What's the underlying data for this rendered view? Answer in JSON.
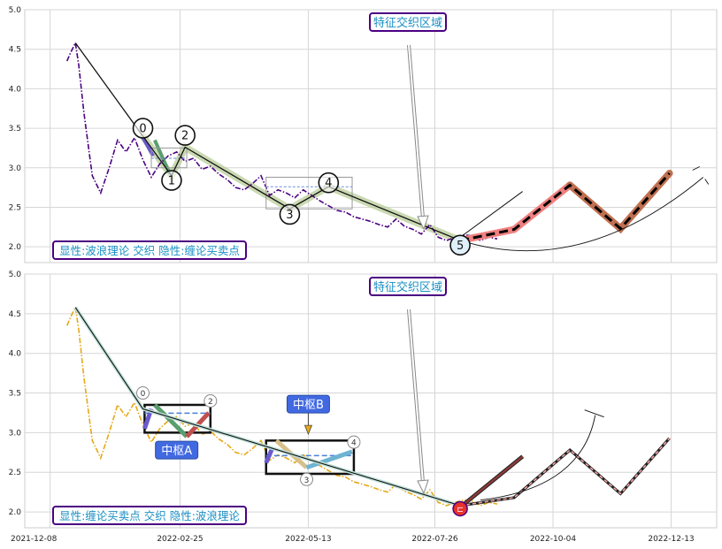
{
  "chart_data": [
    {
      "type": "line",
      "panel": "top",
      "ylim": [
        1.8,
        5.0
      ],
      "yticks": [
        "2.0",
        "2.5",
        "3.0",
        "3.5",
        "4.0",
        "4.5",
        "5.0"
      ],
      "grid": true,
      "price_series": {
        "color": "#4b0082",
        "style": "dashdot",
        "x": [
          -5,
          -3,
          0,
          2,
          5,
          10,
          15,
          20,
          25,
          30,
          35,
          40,
          45,
          50,
          55,
          60,
          65,
          70,
          75,
          80,
          85,
          90,
          95,
          100,
          105,
          110,
          115,
          120,
          125,
          130,
          135,
          140,
          145,
          150,
          155,
          160,
          165,
          170,
          175,
          180,
          185,
          190,
          195,
          200,
          205,
          210,
          215,
          220,
          225,
          230,
          235,
          240,
          245,
          250
        ],
        "y": [
          4.35,
          4.45,
          4.58,
          4.3,
          3.7,
          2.9,
          2.68,
          3.0,
          3.35,
          3.2,
          3.38,
          3.1,
          2.88,
          3.05,
          3.15,
          3.2,
          3.08,
          3.12,
          2.98,
          3.02,
          2.92,
          2.85,
          2.75,
          2.72,
          2.8,
          2.9,
          2.65,
          2.72,
          2.68,
          2.62,
          2.72,
          2.65,
          2.58,
          2.52,
          2.46,
          2.44,
          2.38,
          2.35,
          2.32,
          2.28,
          2.25,
          2.35,
          2.26,
          2.22,
          2.16,
          2.28,
          2.12,
          2.08,
          2.12,
          2.15,
          2.14,
          2.08,
          2.12,
          2.1
        ]
      },
      "wave_line": {
        "x": [
          0,
          40,
          57,
          65,
          127,
          150,
          228,
          260,
          293,
          323,
          352
        ],
        "y": [
          4.58,
          3.4,
          2.9,
          3.26,
          2.48,
          2.76,
          2.08,
          2.22,
          2.78,
          2.23,
          2.93
        ]
      },
      "wave_points": [
        {
          "label": "0",
          "x": 40,
          "y": 3.5
        },
        {
          "label": "1",
          "x": 57,
          "y": 2.84
        },
        {
          "label": "2",
          "x": 65,
          "y": 3.41
        },
        {
          "label": "3",
          "x": 127,
          "y": 2.41
        },
        {
          "label": "4",
          "x": 150,
          "y": 2.81
        },
        {
          "label": "5",
          "x": 228,
          "y": 2.02
        }
      ],
      "legend_text": "显性:波浪理论 交织 隐性:缠论买卖点",
      "annotation": "特征交织区域"
    },
    {
      "type": "line",
      "panel": "bottom",
      "ylim": [
        1.8,
        5.0
      ],
      "yticks": [
        "2.0",
        "2.5",
        "3.0",
        "3.5",
        "4.0",
        "4.5",
        "5.0"
      ],
      "grid": true,
      "price_series": {
        "color": "#e6a817",
        "style": "dashdot",
        "x": [
          -5,
          -3,
          0,
          2,
          5,
          10,
          15,
          20,
          25,
          30,
          35,
          40,
          45,
          50,
          55,
          60,
          65,
          70,
          75,
          80,
          85,
          90,
          95,
          100,
          105,
          110,
          115,
          120,
          125,
          130,
          135,
          140,
          145,
          150,
          155,
          160,
          165,
          170,
          175,
          180,
          185,
          190,
          195,
          200,
          205,
          210,
          215,
          220,
          225,
          230,
          235,
          240,
          245,
          250
        ],
        "y": [
          4.35,
          4.45,
          4.58,
          4.3,
          3.7,
          2.9,
          2.68,
          3.0,
          3.35,
          3.2,
          3.38,
          3.1,
          2.88,
          3.05,
          3.15,
          3.2,
          3.08,
          3.12,
          2.98,
          3.02,
          2.92,
          2.85,
          2.75,
          2.72,
          2.8,
          2.9,
          2.65,
          2.72,
          2.68,
          2.62,
          2.72,
          2.65,
          2.58,
          2.52,
          2.46,
          2.44,
          2.38,
          2.35,
          2.32,
          2.28,
          2.25,
          2.35,
          2.26,
          2.22,
          2.16,
          2.28,
          2.12,
          2.08,
          2.12,
          2.15,
          2.14,
          2.08,
          2.12,
          2.1
        ]
      },
      "stroke_line": {
        "x": [
          0,
          40,
          228,
          260,
          293,
          323,
          352
        ],
        "y": [
          4.58,
          3.3,
          2.08,
          2.18,
          2.78,
          2.23,
          2.93
        ]
      },
      "centers": [
        {
          "label": "中枢A",
          "x0": 41,
          "x1": 80,
          "y0": 3.0,
          "y1": 3.35
        },
        {
          "label": "中枢B",
          "x0": 113,
          "x1": 165,
          "y0": 2.48,
          "y1": 2.9
        }
      ],
      "point_labels": [
        {
          "label": "0",
          "x": 40,
          "y": 3.5
        },
        {
          "label": "2",
          "x": 80,
          "y": 3.4
        },
        {
          "label": "3",
          "x": 137,
          "y": 2.41
        },
        {
          "label": "4",
          "x": 165,
          "y": 2.88
        }
      ],
      "legend_text": "显性:缠论买卖点 交织 隐性:波浪理论",
      "annotation": "特征交织区域"
    }
  ],
  "xaxis": {
    "tick_labels": [
      "2021-12-08",
      "2022-02-25",
      "2022-05-13",
      "2022-07-26",
      "2022-10-04",
      "2022-12-13"
    ],
    "tick_x": [
      -15,
      62,
      138,
      213,
      283,
      353
    ]
  },
  "colors": {
    "annotation_border": "#4b0082",
    "annotation_text": "#1a8fc4",
    "center_badge": "#4169e1",
    "projection_red": "#f08080",
    "projection_brown": "#c07050"
  }
}
